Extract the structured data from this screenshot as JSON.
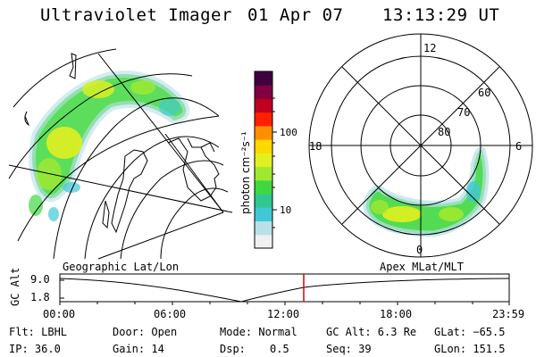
{
  "header": {
    "title": "Ultraviolet Imager",
    "date": "01 Apr 07",
    "time": "13:13:29 UT"
  },
  "colorbar": {
    "unit_label": "photon cm⁻²s⁻¹",
    "tick_labels": [
      "100",
      "10"
    ],
    "colors": [
      "#f0f0f0",
      "#b8e0e8",
      "#40c8d8",
      "#30c890",
      "#40d840",
      "#a0e830",
      "#e0f020",
      "#ffd800",
      "#ff9000",
      "#ff2000",
      "#c00020",
      "#800040",
      "#400040"
    ]
  },
  "polar_plot": {
    "mlt_labels": [
      "12",
      "6",
      "0",
      "18"
    ],
    "lat_labels": [
      "60",
      "70",
      "80"
    ]
  },
  "timeline": {
    "left_label": "Geographic Lat/Lon",
    "right_label": "Apex MLat/MLT",
    "y_axis_label": "GC Alt",
    "y_tick_labels": [
      "9.0",
      "1.8"
    ],
    "x_tick_labels": [
      "00:00",
      "06:00",
      "12:00",
      "18:00",
      "23:59"
    ]
  },
  "info": {
    "filter": "Flt: LBHL",
    "door": "Door: Open",
    "mode": "Mode: Normal",
    "gc_alt": "GC Alt: 6.3 Re",
    "glat": "GLat: −65.5",
    "ip": "IP: 36.0",
    "gain": "Gain: 14",
    "dsp_label": "Dsp:",
    "dsp_value": "0.5",
    "seq": "Seq: 39",
    "glon": "GLon: 151.5"
  },
  "colors": {
    "marker": "#e00000",
    "aurora_green": "#40d840",
    "aurora_yellow": "#e0f020",
    "aurora_cyan": "#40c8d8"
  }
}
